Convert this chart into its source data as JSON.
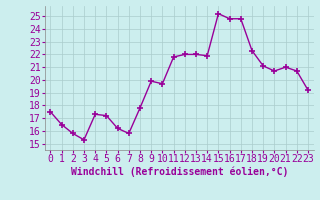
{
  "x": [
    0,
    1,
    2,
    3,
    4,
    5,
    6,
    7,
    8,
    9,
    10,
    11,
    12,
    13,
    14,
    15,
    16,
    17,
    18,
    19,
    20,
    21,
    22,
    23
  ],
  "y": [
    17.5,
    16.5,
    15.8,
    15.3,
    17.3,
    17.2,
    16.2,
    15.8,
    17.8,
    19.9,
    19.7,
    21.8,
    22.0,
    22.0,
    21.9,
    25.2,
    24.8,
    24.8,
    22.3,
    21.1,
    20.7,
    21.0,
    20.7,
    19.2
  ],
  "line_color": "#990099",
  "marker": "+",
  "marker_size": 4,
  "marker_linewidth": 1.2,
  "linewidth": 1.0,
  "bg_color": "#cceeee",
  "grid_color": "#aacccc",
  "xlabel": "Windchill (Refroidissement éolien,°C)",
  "xlabel_fontsize": 7,
  "xtick_labels": [
    "0",
    "1",
    "2",
    "3",
    "4",
    "5",
    "6",
    "7",
    "8",
    "9",
    "10",
    "11",
    "12",
    "13",
    "14",
    "15",
    "16",
    "17",
    "18",
    "19",
    "20",
    "21",
    "22",
    "23"
  ],
  "ytick_min": 15,
  "ytick_max": 25,
  "ytick_step": 1,
  "ylim": [
    14.5,
    25.8
  ],
  "xlim": [
    -0.5,
    23.5
  ],
  "tick_fontsize": 7,
  "tick_color": "#990099",
  "spine_color": "#888888"
}
